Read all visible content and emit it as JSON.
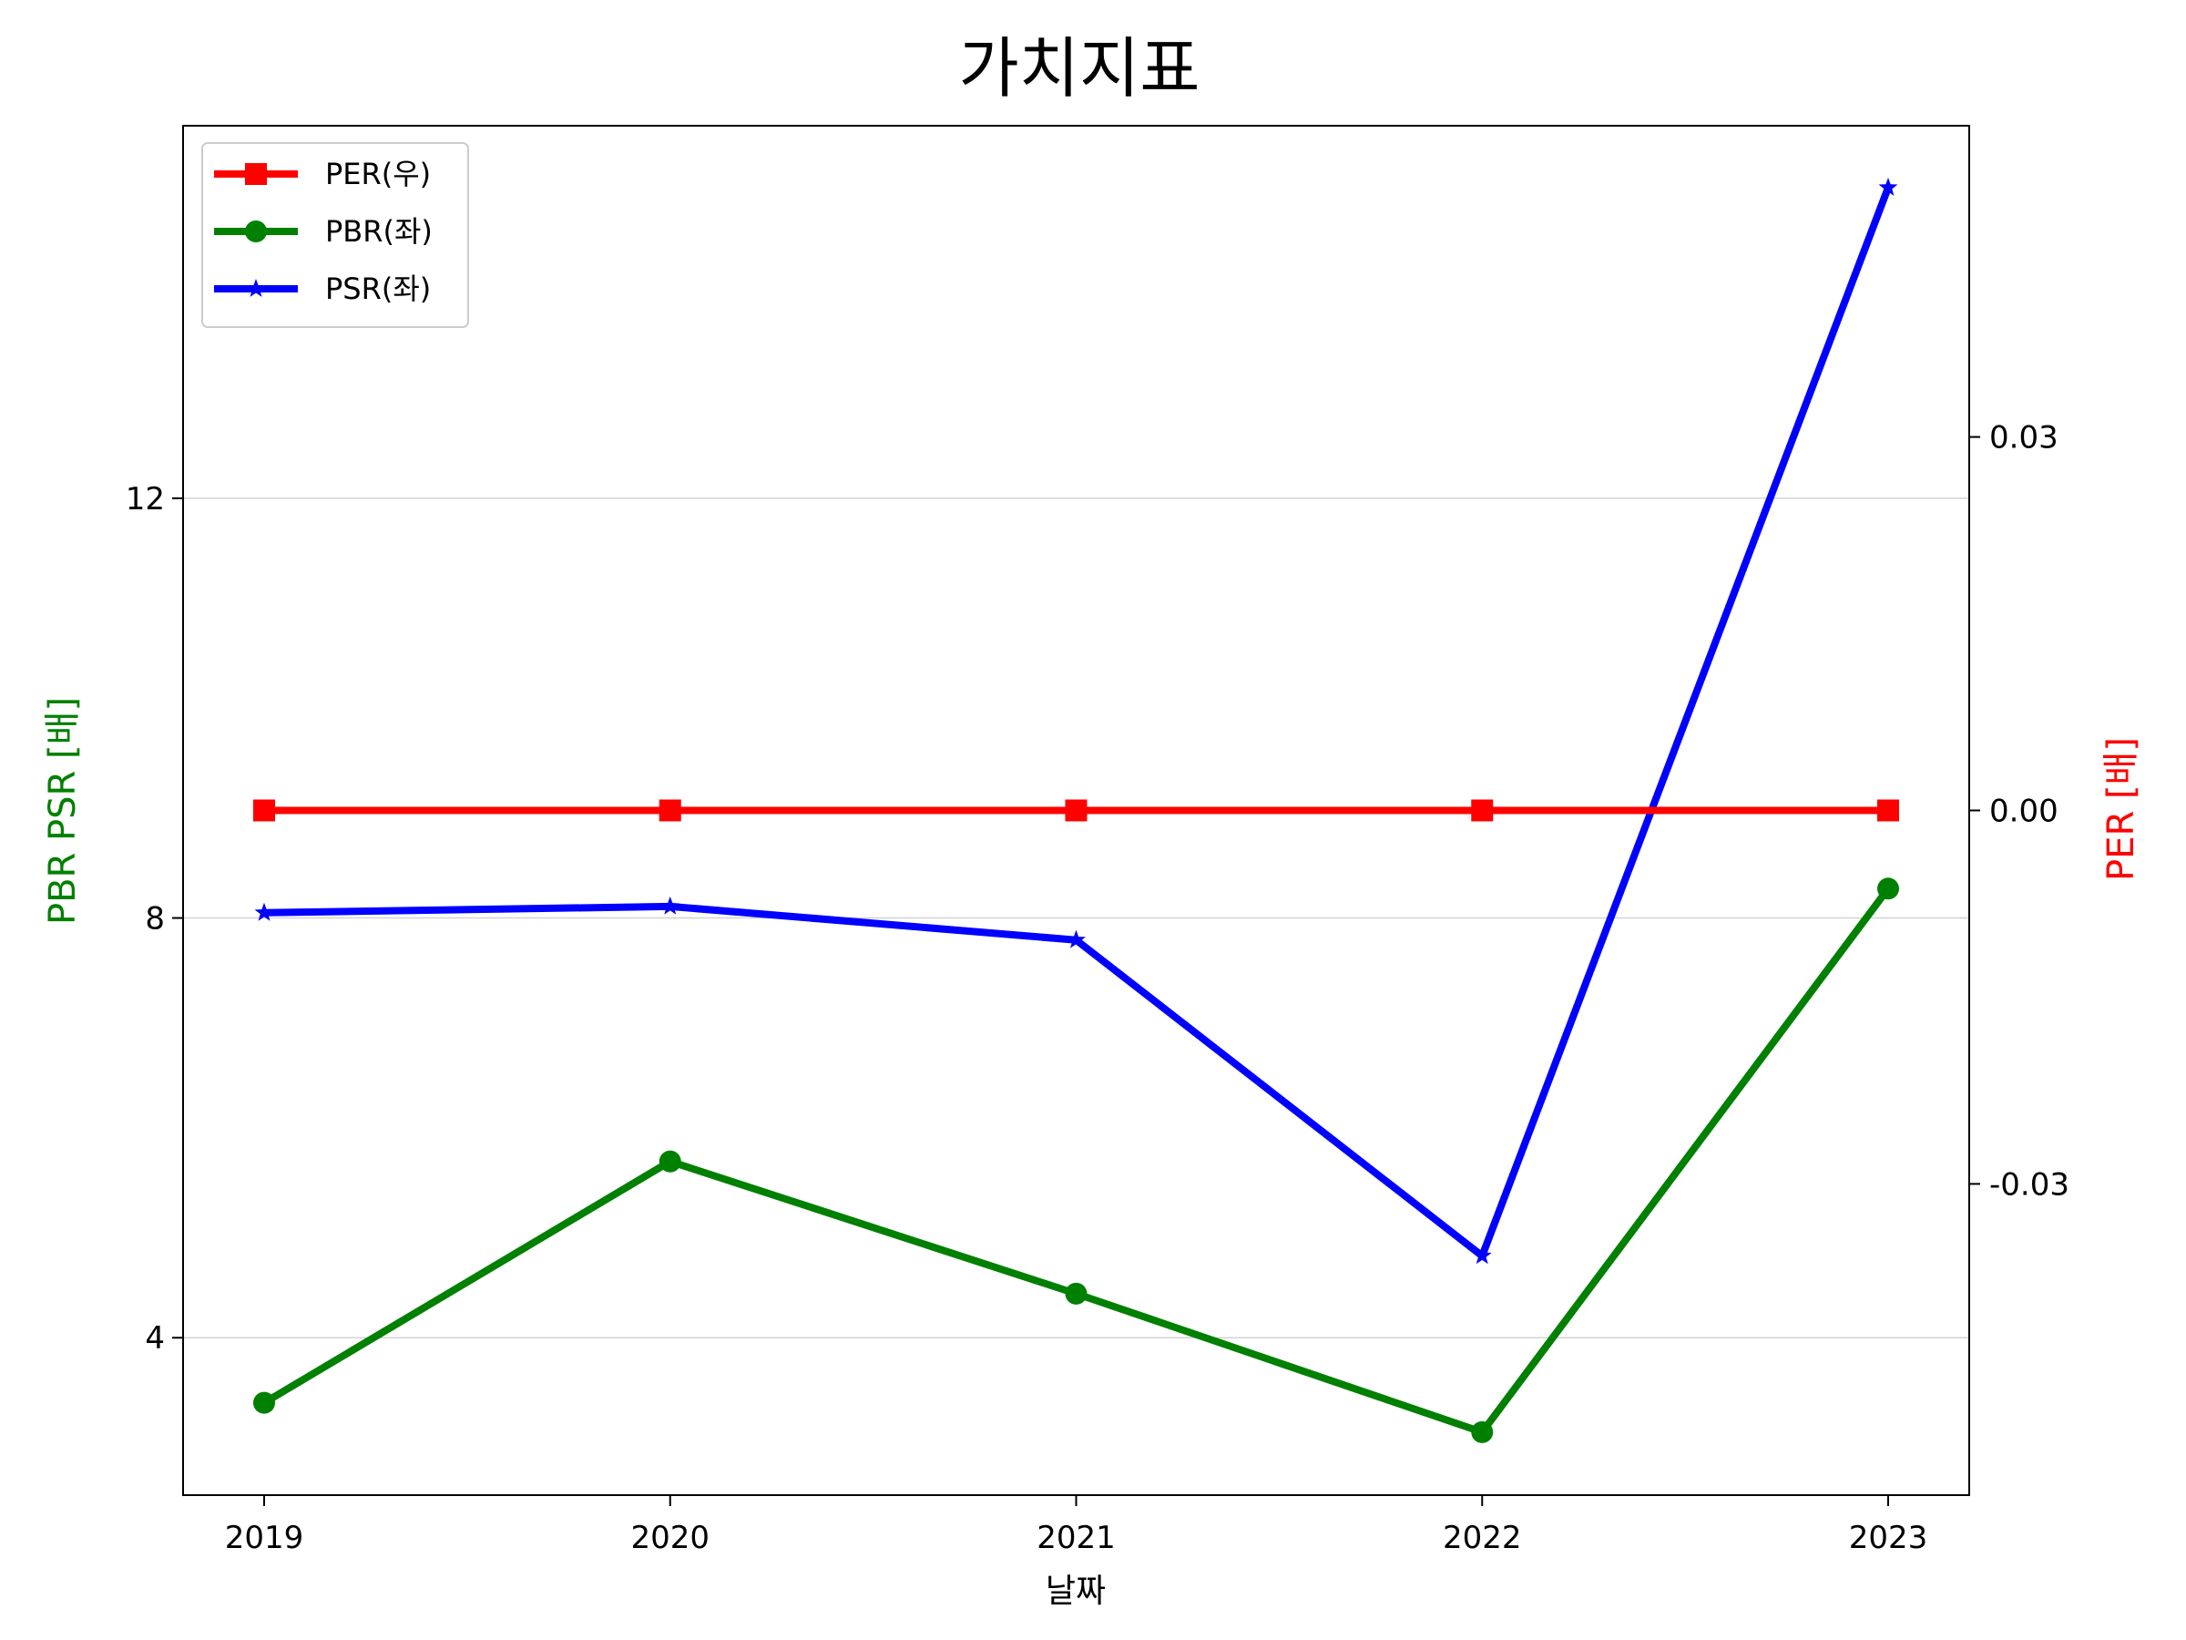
{
  "chart_data": {
    "type": "line",
    "title": "가치지표",
    "xlabel": "날짜",
    "ylabel_left": "PBR PSR [배]",
    "ylabel_right": "PER [배]",
    "categories": [
      "2019",
      "2020",
      "2021",
      "2022",
      "2023"
    ],
    "y_left": {
      "lim": [
        2.5,
        15.55
      ],
      "ticks": [
        4,
        8,
        12
      ],
      "tick_labels": [
        "4",
        "8",
        "12"
      ]
    },
    "y_right": {
      "lim": [
        -0.055,
        0.055
      ],
      "ticks": [
        -0.03,
        0.0,
        0.03
      ],
      "tick_labels": [
        "-0.03",
        "0.00",
        "0.03"
      ]
    },
    "grid": "horizontal (left axis)",
    "legend_position": "upper-left",
    "series": [
      {
        "name": "PER(우)",
        "axis": "right",
        "color": "#ff0000",
        "marker": "square",
        "values": [
          0.0,
          0.0,
          0.0,
          0.0,
          0.0
        ]
      },
      {
        "name": "PBR(좌)",
        "axis": "left",
        "color": "#008000",
        "marker": "circle",
        "values": [
          3.38,
          5.68,
          4.42,
          3.1,
          8.28
        ]
      },
      {
        "name": "PSR(좌)",
        "axis": "left",
        "color": "#0000ff",
        "marker": "star",
        "values": [
          8.05,
          8.11,
          7.79,
          4.78,
          14.96
        ]
      }
    ]
  }
}
